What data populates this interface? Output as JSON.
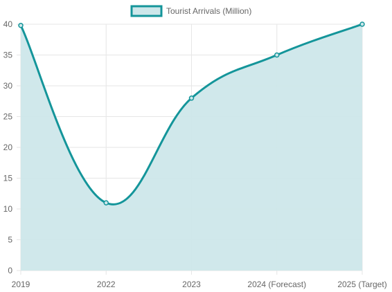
{
  "chart_data": {
    "type": "area",
    "categories": [
      "2019",
      "2022",
      "2023",
      "2024 (Forecast)",
      "2025 (Target)"
    ],
    "series": [
      {
        "name": "Tourist Arrivals (Million)",
        "values": [
          39.8,
          11,
          28,
          35,
          40
        ]
      }
    ],
    "ylim": [
      0,
      40
    ],
    "yticks": [
      0,
      5,
      10,
      15,
      20,
      25,
      30,
      35,
      40
    ],
    "grid": true,
    "legend": "top-center",
    "colors": {
      "line": "#14959a",
      "fill": "#cde7ea",
      "grid": "#e6e6e6",
      "text": "#666666"
    }
  }
}
